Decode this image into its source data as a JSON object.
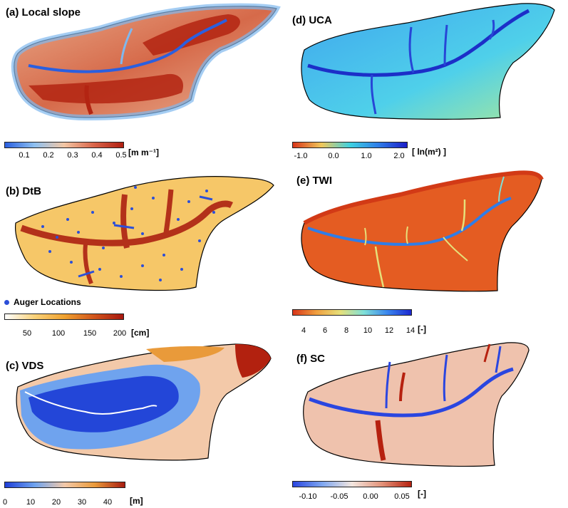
{
  "panels": {
    "a": {
      "title": "(a) Local slope",
      "unit": "[m m⁻¹]",
      "ticks": [
        "0.1",
        "0.2",
        "0.3",
        "0.4",
        "0.5"
      ],
      "colors": [
        "#2a5fe0",
        "#8ec0f0",
        "#f2c6a4",
        "#d9654a",
        "#b01e10"
      ]
    },
    "b": {
      "title": "(b) DtB",
      "unit": "[cm]",
      "ticks": [
        "50",
        "100",
        "150",
        "200"
      ],
      "legend": "Auger Locations",
      "colors": [
        "#ffffff",
        "#f9d27a",
        "#f0a230",
        "#d2561c",
        "#a7170f"
      ]
    },
    "c": {
      "title": "(c) VDS",
      "unit": "[m]",
      "ticks": [
        "0",
        "10",
        "20",
        "30",
        "40"
      ],
      "colors": [
        "#1f3fd8",
        "#6fa3ee",
        "#f3c9a9",
        "#e99a3a",
        "#a71b0f"
      ]
    },
    "d": {
      "title": "(d) UCA",
      "unit": "[ ln(m²) ]",
      "ticks": [
        "-1.0",
        "0.0",
        "1.0",
        "2.0"
      ],
      "colors": [
        "#d9361a",
        "#f0c75a",
        "#3fd1e0",
        "#2f7de8",
        "#1c1ec8"
      ]
    },
    "e": {
      "title": "(e) TWI",
      "unit": "[-]",
      "ticks": [
        "4",
        "6",
        "8",
        "10",
        "12",
        "14"
      ],
      "colors": [
        "#d9361a",
        "#f0a040",
        "#e6e07a",
        "#7fe0d8",
        "#3a86ee",
        "#1d28d0"
      ]
    },
    "f": {
      "title": "(f) SC",
      "unit": "[-]",
      "ticks": [
        "-0.10",
        "-0.05",
        "0.00",
        "0.05"
      ],
      "colors": [
        "#2a46e0",
        "#7fa7f0",
        "#f3e6df",
        "#e3937a",
        "#b6210f"
      ]
    }
  }
}
